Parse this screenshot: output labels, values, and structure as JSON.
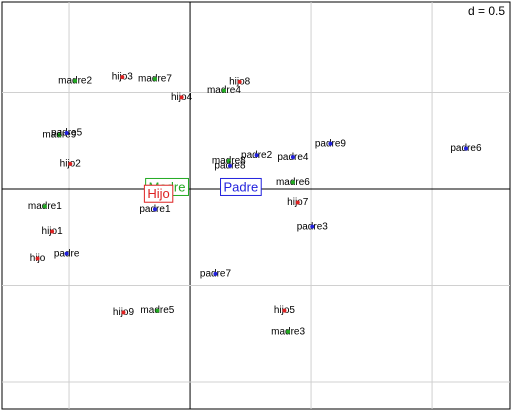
{
  "chart_data": {
    "type": "scatter",
    "grid_label": "d = 0.5",
    "xlim": [
      -0.777,
      1.322
    ],
    "ylim": [
      -1.14,
      0.969
    ],
    "xticks": [
      -0.5,
      0,
      0.5,
      1
    ],
    "yticks": [
      -1,
      -0.5,
      0,
      0.5
    ],
    "grid": true,
    "series": [
      {
        "name": "Madre",
        "color": "#22aa22",
        "centroid": [
          -0.095,
          0.005
        ],
        "labels": [
          "madre2",
          "madre7",
          "madre4",
          "madre9",
          "madre8",
          "madre6",
          "madre1",
          "madre5",
          "madre3"
        ],
        "x": [
          -0.475,
          -0.145,
          0.14,
          -0.54,
          0.16,
          0.425,
          -0.6,
          -0.135,
          0.405
        ],
        "y": [
          0.56,
          0.57,
          0.51,
          0.28,
          0.145,
          0.035,
          -0.09,
          -0.63,
          -0.74
        ]
      },
      {
        "name": "Hijo",
        "color": "#dd2222",
        "centroid": [
          -0.13,
          -0.03
        ],
        "labels": [
          "hijo3",
          "hijo8",
          "hijo4",
          "hijo2",
          "hijo7",
          "hijo1",
          "hijo",
          "hijo9",
          "hijo5"
        ],
        "x": [
          -0.28,
          0.205,
          -0.035,
          -0.495,
          0.445,
          -0.57,
          -0.63,
          -0.275,
          0.39
        ],
        "y": [
          0.58,
          0.555,
          0.475,
          0.13,
          -0.07,
          -0.22,
          -0.36,
          -0.64,
          -0.63
        ]
      },
      {
        "name": "Padre",
        "color": "#2222dd",
        "centroid": [
          0.21,
          0.005
        ],
        "labels": [
          "padre5",
          "padre2",
          "padre9",
          "padre6",
          "padre4",
          "padre8",
          "padre1",
          "padre3",
          "padre",
          "padre7"
        ],
        "x": [
          -0.51,
          0.275,
          0.58,
          1.14,
          0.425,
          0.165,
          -0.145,
          0.505,
          -0.51,
          0.105
        ],
        "y": [
          0.29,
          0.175,
          0.235,
          0.21,
          0.165,
          0.12,
          -0.105,
          -0.195,
          -0.335,
          -0.44
        ]
      }
    ]
  }
}
